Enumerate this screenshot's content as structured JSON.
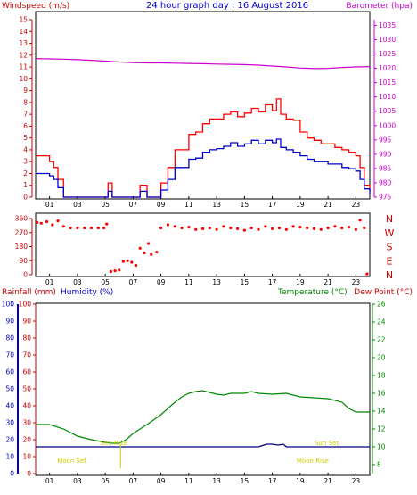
{
  "chart_data": [
    {
      "type": "line",
      "panel": "wind-pressure",
      "title": "24 hour graph day : 16 August 2016",
      "left_axis_label": "Windspeed (m/s)",
      "right_axis_label": "Barometer (hpa)",
      "left_ticks": [
        "0",
        "1",
        "2",
        "3",
        "4",
        "5",
        "6",
        "7",
        "8",
        "9",
        "10",
        "11",
        "12",
        "13",
        "14",
        "15"
      ],
      "right_ticks": [
        "975",
        "980",
        "985",
        "990",
        "995",
        "1000",
        "1005",
        "1010",
        "1015",
        "1020",
        "1025",
        "1030",
        "1035"
      ],
      "x_ticks": [
        "01",
        "03",
        "05",
        "07",
        "09",
        "11",
        "13",
        "15",
        "17",
        "19",
        "21",
        "23"
      ],
      "ylim_left": [
        0,
        15
      ],
      "ylim_right": [
        975,
        1037
      ],
      "hour_range": [
        0,
        24
      ],
      "colors": {
        "gust": "#ff0000",
        "average": "#0000cc",
        "pressure": "#cc00cc",
        "axis_left": "#cc0000",
        "axis_right": "#cc00cc"
      },
      "series": [
        {
          "key": "gust",
          "x": [
            0,
            0.5,
            1,
            1.3,
            1.6,
            2,
            3,
            4,
            5,
            5.2,
            5.5,
            6,
            7,
            7.5,
            8,
            8.5,
            9,
            9.5,
            10,
            11,
            11.5,
            12,
            12.5,
            13,
            13.5,
            14,
            14.5,
            15,
            15.5,
            16,
            16.5,
            17,
            17.3,
            17.6,
            18,
            18.5,
            19,
            19.5,
            20,
            20.5,
            21,
            21.5,
            22,
            22.5,
            23,
            23.3,
            23.6,
            24
          ],
          "values": [
            3.5,
            3.5,
            3,
            2.5,
            1.5,
            0,
            0,
            0,
            0,
            1.2,
            0,
            0,
            0,
            1,
            0,
            0,
            1.2,
            2.5,
            4,
            5.3,
            5.5,
            6.2,
            6.6,
            6.6,
            7,
            7.2,
            6.8,
            7.1,
            7.5,
            7.2,
            7.8,
            7.3,
            8.3,
            7,
            6.6,
            6.5,
            5.5,
            5,
            4.8,
            4.5,
            4.5,
            4.2,
            4,
            3.8,
            3.5,
            2.5,
            1,
            0.5
          ]
        },
        {
          "key": "average",
          "x": [
            0,
            0.5,
            1,
            1.3,
            1.6,
            2,
            3,
            4,
            5,
            5.2,
            5.5,
            6,
            7,
            7.5,
            8,
            8.5,
            9,
            9.5,
            10,
            11,
            11.5,
            12,
            12.5,
            13,
            13.5,
            14,
            14.5,
            15,
            15.5,
            16,
            16.5,
            17,
            17.3,
            17.6,
            18,
            18.5,
            19,
            19.5,
            20,
            20.5,
            21,
            21.5,
            22,
            22.5,
            23,
            23.3,
            23.6,
            24
          ],
          "values": [
            2,
            2,
            1.8,
            1.5,
            0.8,
            0,
            0,
            0,
            0,
            0.5,
            0,
            0,
            0,
            0.5,
            0,
            0,
            0.6,
            1.5,
            2.5,
            3.2,
            3.3,
            3.8,
            4,
            4.1,
            4.3,
            4.6,
            4.3,
            4.5,
            4.8,
            4.5,
            4.8,
            4.6,
            4.9,
            4.2,
            4,
            3.8,
            3.5,
            3.2,
            3,
            3,
            2.8,
            2.8,
            2.5,
            2.4,
            2.2,
            1.5,
            0.7,
            0.3
          ]
        },
        {
          "key": "pressure",
          "x": [
            0,
            1,
            2,
            3,
            4,
            5,
            6,
            7,
            8,
            9,
            10,
            11,
            12,
            13,
            14,
            15,
            16,
            17,
            18,
            19,
            20,
            21,
            22,
            23,
            24
          ],
          "values": [
            1023.4,
            1023.3,
            1023.2,
            1023,
            1022.8,
            1022.5,
            1022.2,
            1022,
            1021.9,
            1021.9,
            1021.8,
            1021.7,
            1021.6,
            1021.5,
            1021.4,
            1021.3,
            1021.1,
            1020.8,
            1020.5,
            1020.1,
            1019.9,
            1020,
            1020.3,
            1020.5,
            1020.6
          ]
        }
      ]
    },
    {
      "type": "scatter",
      "panel": "wind-direction",
      "left_ticks": [
        "0",
        "90",
        "180",
        "270",
        "360"
      ],
      "right_labels": [
        "N",
        "W",
        "S",
        "E",
        "N"
      ],
      "x_ticks": [
        "01",
        "03",
        "05",
        "07",
        "09",
        "11",
        "13",
        "15",
        "17",
        "19",
        "21",
        "23"
      ],
      "ylim": [
        0,
        360
      ],
      "hour_range": [
        0,
        24
      ],
      "color": "#ff0000",
      "series": [
        {
          "name": "direction",
          "x": [
            0.1,
            0.4,
            0.8,
            1.2,
            1.6,
            2,
            2.5,
            3,
            3.5,
            4,
            4.5,
            4.9,
            5.1,
            5.4,
            5.7,
            6,
            6.3,
            6.6,
            6.9,
            7.2,
            7.5,
            7.8,
            8.1,
            8.3,
            8.7,
            9,
            9.5,
            10,
            10.5,
            11,
            11.5,
            12,
            12.5,
            13,
            13.5,
            14,
            14.5,
            15,
            15.5,
            16,
            16.5,
            17,
            17.5,
            18,
            18.5,
            19,
            19.5,
            20,
            20.5,
            21,
            21.5,
            22,
            22.5,
            23,
            23.3,
            23.6,
            23.8
          ],
          "values": [
            335,
            330,
            340,
            320,
            345,
            310,
            300,
            300,
            300,
            300,
            300,
            300,
            325,
            20,
            25,
            30,
            85,
            90,
            80,
            60,
            170,
            140,
            200,
            130,
            145,
            300,
            320,
            310,
            300,
            305,
            290,
            295,
            300,
            290,
            310,
            300,
            295,
            285,
            300,
            290,
            310,
            295,
            300,
            290,
            310,
            305,
            300,
            295,
            290,
            300,
            310,
            300,
            305,
            290,
            350,
            300,
            5
          ]
        }
      ]
    },
    {
      "type": "line",
      "panel": "rain-humidity-temp",
      "labels": {
        "rainfall": "Rainfall (mm)",
        "humidity": "Humidity (%)",
        "temperature": "Temperature (°C)",
        "dew_point": "Dew Point (°C)"
      },
      "left_ticks": [
        "0",
        "10",
        "20",
        "30",
        "40",
        "50",
        "60",
        "70",
        "80",
        "90",
        "100"
      ],
      "right_ticks": [
        "8",
        "10",
        "12",
        "14",
        "16",
        "18",
        "20",
        "22",
        "24",
        "26"
      ],
      "x_ticks": [
        "01",
        "03",
        "05",
        "07",
        "09",
        "11",
        "13",
        "15",
        "17",
        "19",
        "21",
        "23"
      ],
      "ylim_left": [
        0,
        100
      ],
      "ylim_right": [
        7,
        26
      ],
      "hour_range": [
        0,
        24
      ],
      "colors": {
        "temperature": "#008800",
        "dew_point": "#000080",
        "rainfall": "#cc0000",
        "humidity": "#0000cc",
        "events": "#cccc00"
      },
      "series": [
        {
          "key": "temperature",
          "x": [
            0,
            1,
            2,
            3,
            4,
            5,
            5.5,
            6,
            6.5,
            7,
            8,
            9,
            10,
            10.5,
            11,
            11.5,
            12,
            12.5,
            13,
            13.5,
            14,
            15,
            15.5,
            16,
            17,
            18,
            18.5,
            19,
            20,
            21,
            22,
            22.5,
            23,
            24
          ],
          "values": [
            12.5,
            12.5,
            12,
            11.2,
            10.8,
            10.5,
            10.4,
            10.4,
            10.8,
            11.5,
            12.5,
            13.6,
            15,
            15.6,
            16,
            16.2,
            16.3,
            16.1,
            15.9,
            15.8,
            16,
            16,
            16.2,
            16,
            15.9,
            16,
            15.8,
            15.6,
            15.5,
            15.4,
            15,
            14.3,
            13.9,
            13.9
          ]
        },
        {
          "key": "dew_point",
          "x": [
            0,
            14,
            15,
            16,
            16.2,
            16.6,
            17,
            17.4,
            17.8,
            18,
            19,
            24
          ],
          "values": [
            10,
            10,
            10,
            10,
            10.1,
            10.3,
            10.3,
            10.2,
            10.3,
            10,
            10,
            10
          ]
        }
      ],
      "annotations": [
        {
          "text": "Sun Rise",
          "hour": 5.6
        },
        {
          "text": "Moon Set",
          "hour": 2.6
        },
        {
          "text": "Sun Set",
          "hour": 20.9
        },
        {
          "text": "Moon Rise",
          "hour": 19.9
        }
      ],
      "moon_set_marker_hour": 6.1
    }
  ]
}
